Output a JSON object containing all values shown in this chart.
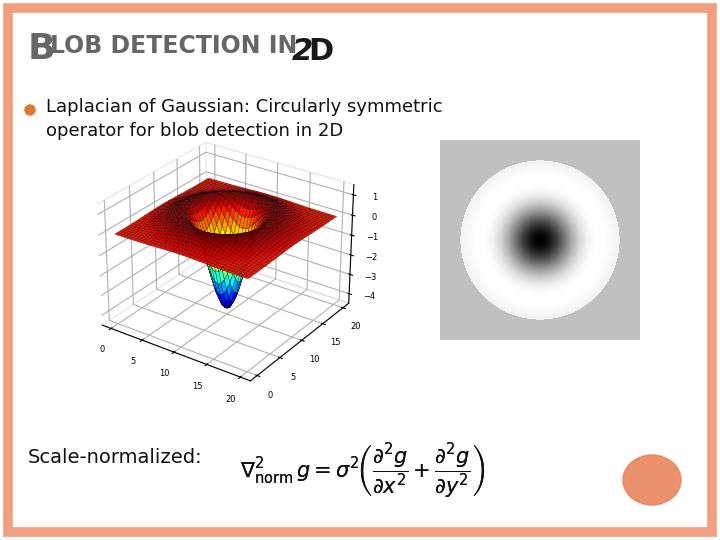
{
  "title_B": "B",
  "title_rest": "LOB DETECTION IN ",
  "title_2": "2",
  "title_D": "D",
  "bullet_text_line1": "Laplacian of Gaussian: Circularly symmetric",
  "bullet_text_line2": "operator for blob detection in 2D",
  "scale_label": "Scale-normalized:",
  "bg_color": "#ffffff",
  "border_color": "#f0a080",
  "title_color": "#666666",
  "bullet_color": "#e07830",
  "text_color": "#111111",
  "blob_circle_color": "#e8845a",
  "surface_elev": 28,
  "surface_azim": -55
}
